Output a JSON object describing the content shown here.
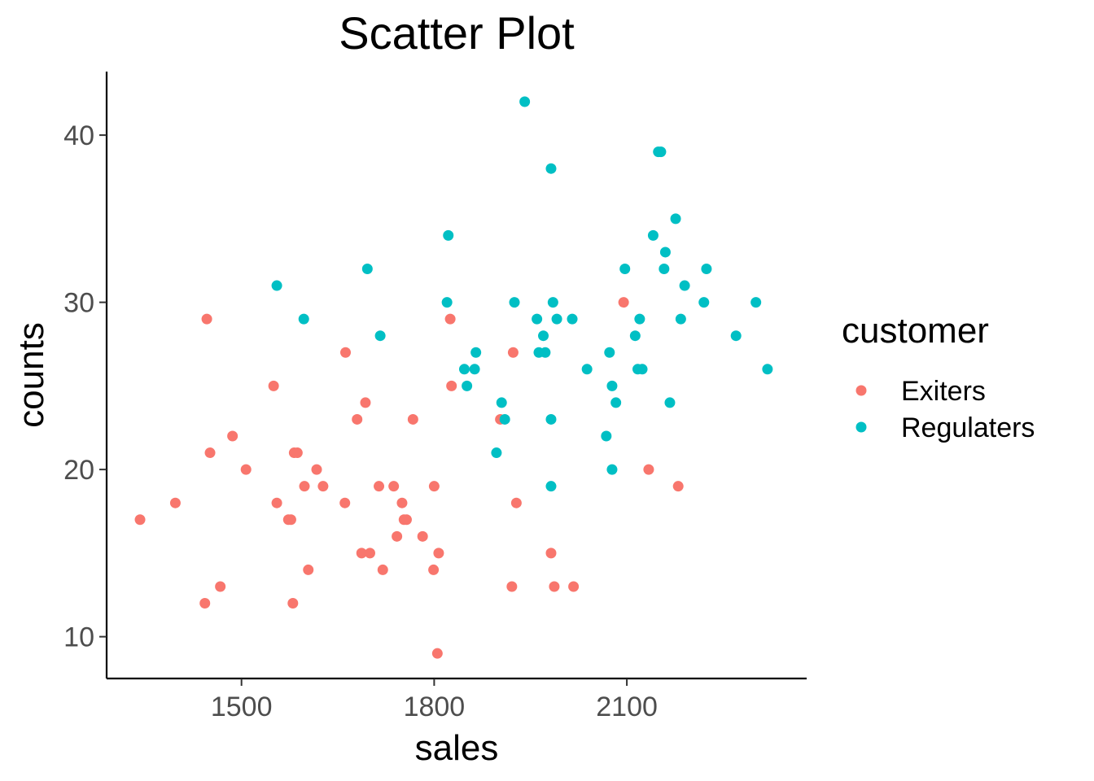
{
  "chart_data": {
    "type": "scatter",
    "title": "Scatter Plot",
    "xlabel": "sales",
    "ylabel": "counts",
    "xlim": [
      1290,
      2380
    ],
    "ylim": [
      7.5,
      43.8
    ],
    "xticks": [
      1500,
      1800,
      2100
    ],
    "yticks": [
      10,
      20,
      30,
      40
    ],
    "grid": false,
    "legend": {
      "title": "customer",
      "placement": "right"
    },
    "series": [
      {
        "name": "Exiters",
        "color": "#F8766D",
        "points": [
          [
            1342,
            17
          ],
          [
            1397,
            18
          ],
          [
            1446,
            29
          ],
          [
            1443,
            12
          ],
          [
            1451,
            21
          ],
          [
            1467,
            13
          ],
          [
            1486,
            22
          ],
          [
            1507,
            20
          ],
          [
            1550,
            25
          ],
          [
            1555,
            18
          ],
          [
            1573,
            17
          ],
          [
            1577,
            17
          ],
          [
            1580,
            12
          ],
          [
            1582,
            21
          ],
          [
            1587,
            21
          ],
          [
            1598,
            19
          ],
          [
            1604,
            14
          ],
          [
            1617,
            20
          ],
          [
            1627,
            19
          ],
          [
            1661,
            18
          ],
          [
            1662,
            27
          ],
          [
            1680,
            23
          ],
          [
            1687,
            15
          ],
          [
            1693,
            24
          ],
          [
            1700,
            15
          ],
          [
            1714,
            19
          ],
          [
            1720,
            14
          ],
          [
            1737,
            19
          ],
          [
            1742,
            16
          ],
          [
            1750,
            18
          ],
          [
            1753,
            17
          ],
          [
            1757,
            17
          ],
          [
            1767,
            23
          ],
          [
            1782,
            16
          ],
          [
            1799,
            14
          ],
          [
            1800,
            19
          ],
          [
            1807,
            15
          ],
          [
            1805,
            9
          ],
          [
            1825,
            29
          ],
          [
            1827,
            25
          ],
          [
            1903,
            23
          ],
          [
            1921,
            13
          ],
          [
            1923,
            27
          ],
          [
            1928,
            18
          ],
          [
            1982,
            15
          ],
          [
            1987,
            13
          ],
          [
            2017,
            13
          ],
          [
            2095,
            30
          ],
          [
            2134,
            20
          ],
          [
            2180,
            19
          ]
        ]
      },
      {
        "name": "Regulaters",
        "color": "#00BFC4",
        "points": [
          [
            1555,
            31
          ],
          [
            1597,
            29
          ],
          [
            1696,
            32
          ],
          [
            1716,
            28
          ],
          [
            1820,
            30
          ],
          [
            1822,
            34
          ],
          [
            1847,
            26
          ],
          [
            1851,
            25
          ],
          [
            1863,
            26
          ],
          [
            1865,
            27
          ],
          [
            1897,
            21
          ],
          [
            1905,
            24
          ],
          [
            1910,
            23
          ],
          [
            1925,
            30
          ],
          [
            1941,
            42
          ],
          [
            1960,
            29
          ],
          [
            1963,
            27
          ],
          [
            1970,
            28
          ],
          [
            1973,
            27
          ],
          [
            1982,
            38
          ],
          [
            1982,
            23
          ],
          [
            1982,
            19
          ],
          [
            1985,
            30
          ],
          [
            1991,
            29
          ],
          [
            2015,
            29
          ],
          [
            2038,
            26
          ],
          [
            2068,
            22
          ],
          [
            2073,
            27
          ],
          [
            2077,
            25
          ],
          [
            2077,
            20
          ],
          [
            2083,
            24
          ],
          [
            2097,
            32
          ],
          [
            2113,
            28
          ],
          [
            2117,
            26
          ],
          [
            2120,
            29
          ],
          [
            2124,
            26
          ],
          [
            2141,
            34
          ],
          [
            2149,
            39
          ],
          [
            2153,
            39
          ],
          [
            2158,
            32
          ],
          [
            2160,
            33
          ],
          [
            2167,
            24
          ],
          [
            2176,
            35
          ],
          [
            2184,
            29
          ],
          [
            2190,
            31
          ],
          [
            2220,
            30
          ],
          [
            2224,
            32
          ],
          [
            2270,
            28
          ],
          [
            2301,
            30
          ],
          [
            2319,
            26
          ]
        ]
      }
    ]
  }
}
